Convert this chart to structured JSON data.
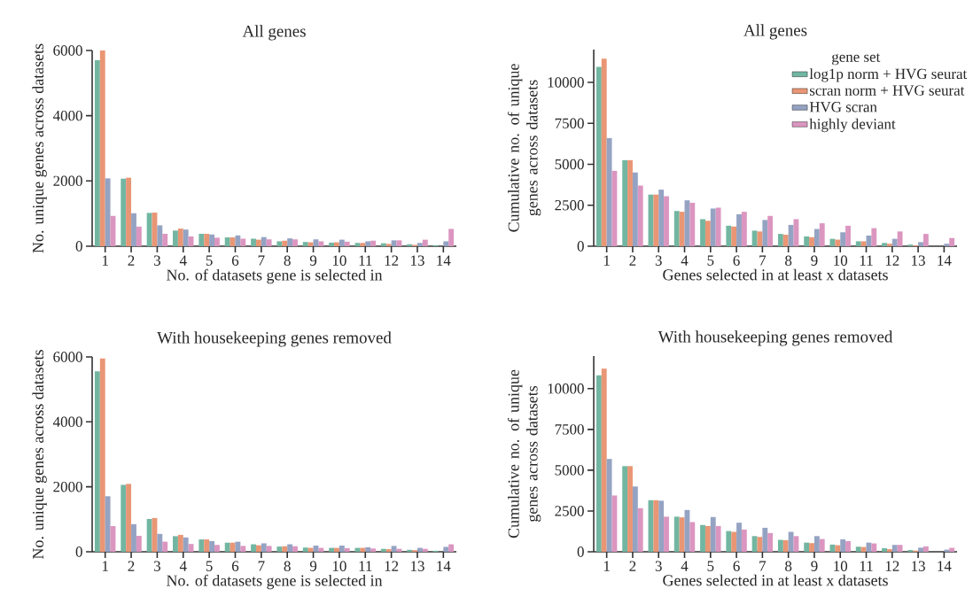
{
  "chart_data": [
    {
      "type": "bar",
      "title": "All genes",
      "xlabel": "No. of datasets gene is selected in",
      "ylabel": "No. unique genes across datasets",
      "categories": [
        "1",
        "2",
        "3",
        "4",
        "5",
        "6",
        "7",
        "8",
        "9",
        "10",
        "11",
        "12",
        "13",
        "14"
      ],
      "ylim": [
        0,
        6000
      ],
      "yticks": [
        0,
        2000,
        4000,
        6000
      ],
      "series": [
        {
          "color": "#72b6a1",
          "values": [
            5700,
            2070,
            1020,
            480,
            380,
            270,
            230,
            150,
            130,
            110,
            100,
            90,
            60,
            30
          ]
        },
        {
          "color": "#e99675",
          "values": [
            6000,
            2100,
            1030,
            540,
            380,
            270,
            200,
            170,
            120,
            120,
            100,
            70,
            40,
            null
          ]
        },
        {
          "color": "#95a3c3",
          "values": [
            2080,
            1010,
            640,
            510,
            360,
            330,
            280,
            240,
            210,
            200,
            150,
            180,
            100,
            150
          ]
        },
        {
          "color": "#db96c0",
          "values": [
            930,
            600,
            380,
            300,
            260,
            230,
            210,
            210,
            150,
            140,
            170,
            180,
            200,
            530
          ]
        }
      ]
    },
    {
      "type": "bar",
      "title": "All genes",
      "xlabel": "Genes selected in at least x datasets",
      "ylabel": "Cumulative no. of unique genes across datasets",
      "categories": [
        "1",
        "2",
        "3",
        "4",
        "5",
        "6",
        "7",
        "8",
        "9",
        "10",
        "11",
        "12",
        "13",
        "14"
      ],
      "ylim": [
        0,
        12000
      ],
      "yticks": [
        0,
        2500,
        5000,
        7500,
        10000
      ],
      "legend": "top right",
      "legend_title": "gene set",
      "series": [
        {
          "name": "log1p norm + HVG seurat",
          "color": "#72b6a1",
          "values": [
            10950,
            5250,
            3150,
            2150,
            1650,
            1250,
            950,
            750,
            600,
            450,
            300,
            200,
            100,
            null
          ]
        },
        {
          "name": "scran norm + HVG seurat",
          "color": "#e99675",
          "values": [
            11450,
            5250,
            3150,
            2100,
            1550,
            1200,
            900,
            700,
            550,
            400,
            300,
            150,
            50,
            null
          ]
        },
        {
          "name": "HVG scran",
          "color": "#95a3c3",
          "values": [
            6600,
            4500,
            3450,
            2800,
            2300,
            1950,
            1600,
            1300,
            1050,
            850,
            650,
            450,
            250,
            150
          ]
        },
        {
          "name": "highly deviant",
          "color": "#db96c0",
          "values": [
            4600,
            3700,
            3050,
            2650,
            2350,
            2100,
            1850,
            1650,
            1400,
            1250,
            1100,
            900,
            750,
            500
          ]
        }
      ]
    },
    {
      "type": "bar",
      "title": "With housekeeping genes removed",
      "xlabel": "No. of datasets gene is selected in",
      "ylabel": "No. unique genes across datasets",
      "categories": [
        "1",
        "2",
        "3",
        "4",
        "5",
        "6",
        "7",
        "8",
        "9",
        "10",
        "11",
        "12",
        "13",
        "14"
      ],
      "ylim": [
        0,
        6000
      ],
      "yticks": [
        0,
        2000,
        4000,
        6000
      ],
      "series": [
        {
          "color": "#72b6a1",
          "values": [
            5560,
            2060,
            1010,
            480,
            380,
            280,
            230,
            160,
            130,
            120,
            120,
            90,
            60,
            30
          ]
        },
        {
          "color": "#e99675",
          "values": [
            5950,
            2090,
            1040,
            520,
            380,
            280,
            200,
            170,
            120,
            120,
            120,
            80,
            50,
            null
          ]
        },
        {
          "color": "#95a3c3",
          "values": [
            1710,
            850,
            550,
            440,
            330,
            310,
            260,
            230,
            190,
            190,
            140,
            180,
            120,
            150
          ]
        },
        {
          "color": "#db96c0",
          "values": [
            790,
            490,
            310,
            240,
            210,
            180,
            180,
            170,
            120,
            110,
            100,
            90,
            90,
            230
          ]
        }
      ]
    },
    {
      "type": "bar",
      "title": "With housekeeping genes removed",
      "xlabel": "Genes selected in at least x datasets",
      "ylabel": "Cumulative no. of unique genes across datasets",
      "categories": [
        "1",
        "2",
        "3",
        "4",
        "5",
        "6",
        "7",
        "8",
        "9",
        "10",
        "11",
        "12",
        "13",
        "14"
      ],
      "ylim": [
        0,
        12000
      ],
      "yticks": [
        0,
        2500,
        5000,
        7500,
        10000
      ],
      "series": [
        {
          "color": "#72b6a1",
          "values": [
            10820,
            5250,
            3160,
            2150,
            1640,
            1270,
            960,
            730,
            560,
            440,
            310,
            220,
            110,
            null
          ]
        },
        {
          "color": "#e99675",
          "values": [
            11220,
            5250,
            3160,
            2110,
            1580,
            1220,
            910,
            710,
            530,
            400,
            290,
            160,
            70,
            null
          ]
        },
        {
          "color": "#95a3c3",
          "values": [
            5690,
            4000,
            3130,
            2560,
            2130,
            1780,
            1470,
            1220,
            960,
            760,
            560,
            420,
            250,
            130
          ]
        },
        {
          "color": "#db96c0",
          "values": [
            3450,
            2670,
            2150,
            1820,
            1580,
            1360,
            1150,
            960,
            780,
            650,
            510,
            420,
            330,
            240
          ]
        }
      ]
    }
  ]
}
